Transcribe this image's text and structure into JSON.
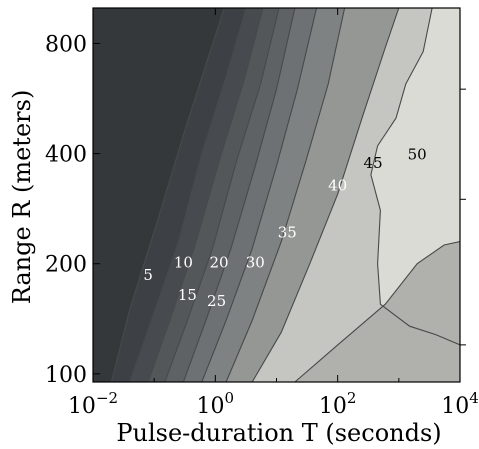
{
  "chart_data": {
    "type": "contour",
    "title": "",
    "xlabel": "Pulse-duration T  (seconds)",
    "ylabel": "Range R  (meters)",
    "x_scale": "log",
    "y_scale": "log",
    "xlim": [
      0.01,
      10000
    ],
    "ylim": [
      95,
      1000
    ],
    "x_ticks": [
      {
        "value": 0.01,
        "base": "10",
        "exp": "−2"
      },
      {
        "value": 1,
        "base": "10",
        "exp": "0"
      },
      {
        "value": 100,
        "base": "10",
        "exp": "2"
      },
      {
        "value": 10000,
        "base": "10",
        "exp": "4"
      }
    ],
    "y_ticks": [
      {
        "value": 100,
        "label": "100"
      },
      {
        "value": 200,
        "label": "200"
      },
      {
        "value": 400,
        "label": "400"
      },
      {
        "value": 800,
        "label": "800"
      }
    ],
    "levels": [
      5,
      10,
      15,
      20,
      25,
      30,
      35,
      40,
      45,
      50
    ],
    "colors": {
      "fills": [
        "#34383b",
        "#3d4145",
        "#474b4f",
        "#53575a",
        "#5e6265",
        "#6e7173",
        "#7f8282",
        "#959795",
        "#b0b1ad",
        "#c5c6c1",
        "#dadbd4"
      ],
      "line": "#474a4a"
    },
    "contour_labels": [
      {
        "text": "5",
        "x": 0.08,
        "y": 185,
        "color": "#ffffff"
      },
      {
        "text": "10",
        "x": 0.3,
        "y": 200,
        "color": "#ffffff"
      },
      {
        "text": "15",
        "x": 0.35,
        "y": 163,
        "color": "#ffffff"
      },
      {
        "text": "20",
        "x": 1.15,
        "y": 200,
        "color": "#ffffff"
      },
      {
        "text": "25",
        "x": 1.05,
        "y": 157,
        "color": "#ffffff"
      },
      {
        "text": "30",
        "x": 4.5,
        "y": 200,
        "color": "#ffffff"
      },
      {
        "text": "35",
        "x": 15,
        "y": 242,
        "color": "#ffffff"
      },
      {
        "text": "40",
        "x": 100,
        "y": 325,
        "color": "#ffffff"
      },
      {
        "text": "45",
        "x": 380,
        "y": 375,
        "color": "#000000"
      },
      {
        "text": "50",
        "x": 2000,
        "y": 395,
        "color": "#000000"
      }
    ],
    "boundaries": [
      [
        [
          0.02,
          95
        ],
        [
          0.04,
          150
        ],
        [
          0.12,
          270
        ],
        [
          0.3,
          450
        ],
        [
          0.7,
          700
        ],
        [
          1.4,
          1000
        ]
      ],
      [
        [
          0.04,
          95
        ],
        [
          0.09,
          140
        ],
        [
          0.25,
          230
        ],
        [
          0.6,
          400
        ],
        [
          1.5,
          650
        ],
        [
          3.2,
          1000
        ]
      ],
      [
        [
          0.08,
          95
        ],
        [
          0.18,
          140
        ],
        [
          0.45,
          220
        ],
        [
          1.2,
          390
        ],
        [
          3,
          640
        ],
        [
          6,
          1000
        ]
      ],
      [
        [
          0.15,
          95
        ],
        [
          0.35,
          140
        ],
        [
          0.9,
          220
        ],
        [
          2.2,
          380
        ],
        [
          5.5,
          620
        ],
        [
          11,
          1000
        ]
      ],
      [
        [
          0.3,
          95
        ],
        [
          0.7,
          140
        ],
        [
          1.8,
          220
        ],
        [
          4.5,
          370
        ],
        [
          10,
          600
        ],
        [
          20,
          1000
        ]
      ],
      [
        [
          0.6,
          95
        ],
        [
          1.5,
          140
        ],
        [
          4,
          220
        ],
        [
          10,
          370
        ],
        [
          22,
          600
        ],
        [
          45,
          1000
        ]
      ],
      [
        [
          1.5,
          95
        ],
        [
          4,
          140
        ],
        [
          12,
          230
        ],
        [
          30,
          380
        ],
        [
          70,
          620
        ],
        [
          130,
          1000
        ]
      ],
      [
        [
          4,
          95
        ],
        [
          12,
          130
        ],
        [
          35,
          200
        ],
        [
          100,
          310
        ],
        [
          250,
          500
        ],
        [
          600,
          780
        ],
        [
          1000,
          1000
        ]
      ],
      [
        [
          20,
          95
        ],
        [
          100,
          120
        ],
        [
          600,
          155
        ],
        [
          2000,
          200
        ],
        [
          5500,
          225
        ],
        [
          10000,
          230
        ]
      ],
      [
        [
          10000,
          120
        ],
        [
          4000,
          128
        ],
        [
          1500,
          135
        ],
        [
          500,
          155
        ],
        [
          450,
          200
        ],
        [
          500,
          280
        ],
        [
          350,
          350
        ],
        [
          450,
          420
        ],
        [
          900,
          500
        ],
        [
          1300,
          620
        ],
        [
          2500,
          760
        ],
        [
          3500,
          1000
        ]
      ]
    ]
  }
}
